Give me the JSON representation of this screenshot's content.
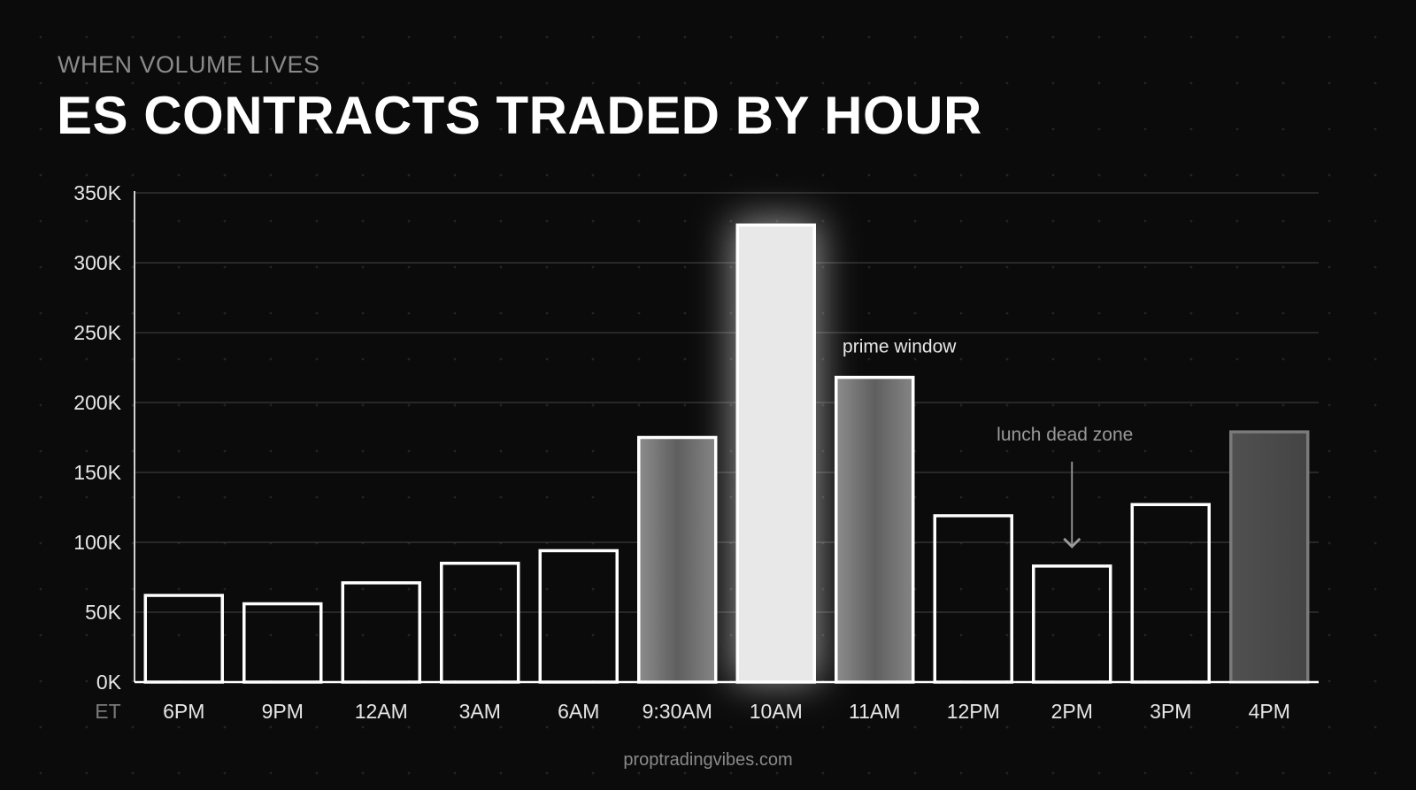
{
  "header": {
    "kicker": "WHEN VOLUME LIVES",
    "title": "ES CONTRACTS TRADED BY HOUR"
  },
  "footer": {
    "source": "proptradingvibes.com"
  },
  "colors": {
    "background": "#0b0b0b",
    "outline": "#ffffff",
    "peak_fill": "#e8e8e8",
    "mid_fill": "#777777",
    "close_fill": "#4a4a4a",
    "gridline": "#3a3a3a",
    "annotation": "#9a9a9a"
  },
  "chart_data": {
    "type": "bar",
    "title": "ES CONTRACTS TRADED BY HOUR",
    "subtitle": "WHEN VOLUME LIVES",
    "xlabel": "ET",
    "ylabel": "",
    "ylim": [
      0,
      350000
    ],
    "yticks": [
      0,
      50000,
      100000,
      150000,
      200000,
      250000,
      300000,
      350000
    ],
    "ytick_labels": [
      "0K",
      "50K",
      "100K",
      "150K",
      "200K",
      "250K",
      "300K",
      "350K"
    ],
    "categories": [
      "6PM",
      "9PM",
      "12AM",
      "3AM",
      "6AM",
      "9:30AM",
      "10AM",
      "11AM",
      "12PM",
      "2PM",
      "3PM",
      "4PM"
    ],
    "values": [
      62000,
      56000,
      71000,
      85000,
      94000,
      175000,
      327000,
      218000,
      119000,
      83000,
      127000,
      179000
    ],
    "bar_styles": [
      "outline",
      "outline",
      "outline",
      "outline",
      "outline",
      "gradient",
      "highlight",
      "gradient",
      "outline",
      "outline",
      "outline",
      "dark"
    ],
    "grid": true,
    "legend": "none",
    "annotations": [
      {
        "text": "prime window",
        "category": "11AM",
        "style": "label"
      },
      {
        "text": "lunch dead zone",
        "category": "2PM",
        "style": "arrow"
      }
    ]
  }
}
